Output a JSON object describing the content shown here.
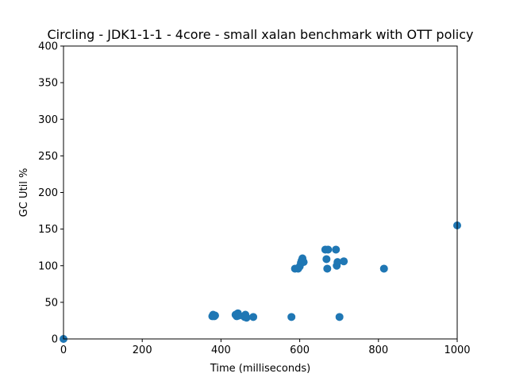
{
  "chart_data": {
    "type": "scatter",
    "title": "Circling - JDK1-1-1 - 4core -  small xalan benchmark with OTT policy",
    "xlabel": "Time (milliseconds)",
    "ylabel": "GC Util %",
    "xlim": [
      0,
      1000
    ],
    "ylim": [
      0,
      400
    ],
    "xticks": [
      0,
      200,
      400,
      600,
      800,
      1000
    ],
    "yticks": [
      0,
      50,
      100,
      150,
      200,
      250,
      300,
      350,
      400
    ],
    "grid": false,
    "marker_color": "#1f77b4",
    "points": [
      {
        "x": 0,
        "y": 0
      },
      {
        "x": 378,
        "y": 31
      },
      {
        "x": 380,
        "y": 33
      },
      {
        "x": 383,
        "y": 31
      },
      {
        "x": 385,
        "y": 32
      },
      {
        "x": 437,
        "y": 33
      },
      {
        "x": 440,
        "y": 31
      },
      {
        "x": 443,
        "y": 35
      },
      {
        "x": 446,
        "y": 32
      },
      {
        "x": 460,
        "y": 30
      },
      {
        "x": 462,
        "y": 33
      },
      {
        "x": 465,
        "y": 29
      },
      {
        "x": 482,
        "y": 30
      },
      {
        "x": 579,
        "y": 30
      },
      {
        "x": 588,
        "y": 96
      },
      {
        "x": 596,
        "y": 96
      },
      {
        "x": 600,
        "y": 99
      },
      {
        "x": 603,
        "y": 104
      },
      {
        "x": 605,
        "y": 107
      },
      {
        "x": 607,
        "y": 110
      },
      {
        "x": 610,
        "y": 105
      },
      {
        "x": 665,
        "y": 122
      },
      {
        "x": 668,
        "y": 109
      },
      {
        "x": 670,
        "y": 96
      },
      {
        "x": 672,
        "y": 122
      },
      {
        "x": 692,
        "y": 122
      },
      {
        "x": 694,
        "y": 100
      },
      {
        "x": 696,
        "y": 105
      },
      {
        "x": 701,
        "y": 30
      },
      {
        "x": 712,
        "y": 106
      },
      {
        "x": 814,
        "y": 96
      },
      {
        "x": 1000,
        "y": 155
      }
    ]
  }
}
